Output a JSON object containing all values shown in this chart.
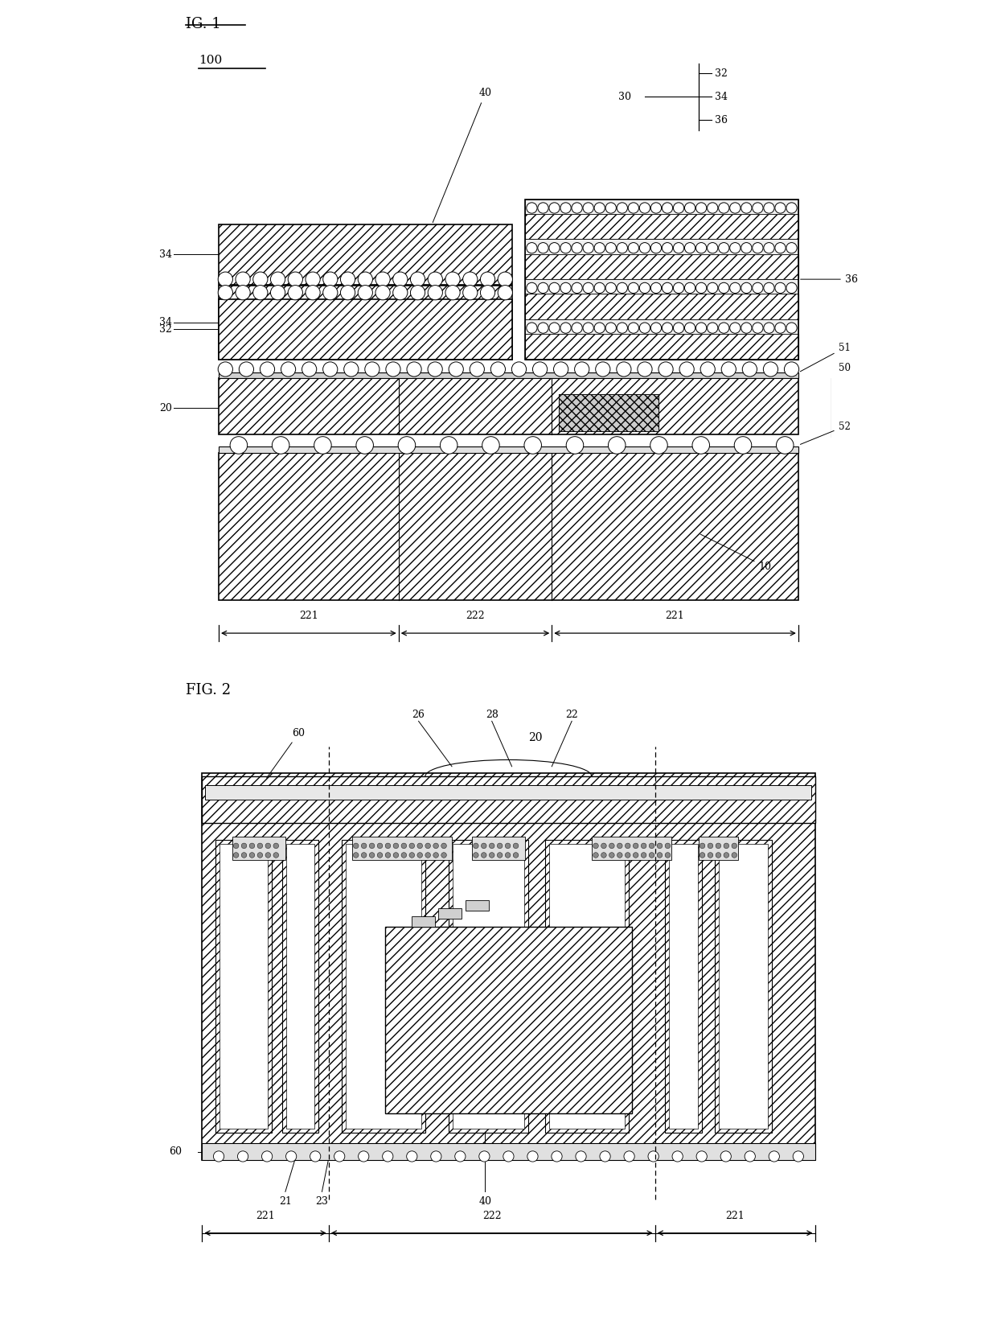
{
  "bg": "#ffffff",
  "lc": "#000000",
  "fig1_title": "IG. 1",
  "fig2_title": "FIG. 2",
  "label_100": "100",
  "hatch_main": "///",
  "hatch_dense": "////"
}
